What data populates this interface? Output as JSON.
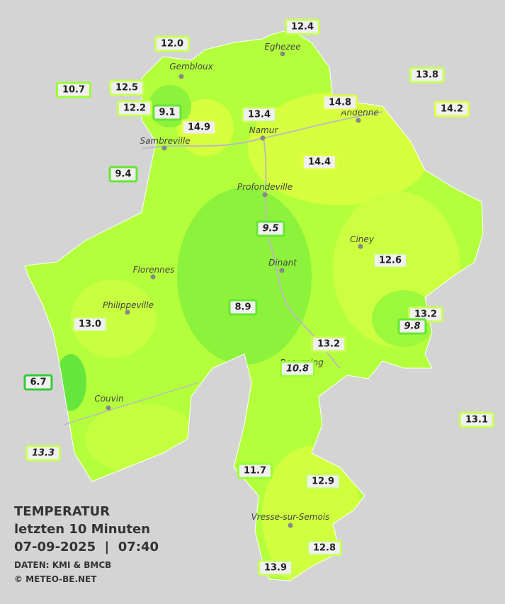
{
  "stations": [
    "12.4",
    "12.0",
    "10.7",
    "12.5",
    "13.8",
    "12.2",
    "9.1",
    "14.8",
    "14.2",
    "13.4",
    "14.9",
    "14.4",
    "9.4",
    "9.5",
    "12.6",
    "8.9",
    "13.2",
    "9.8",
    "13.0",
    "13.2",
    "10.8",
    "6.7",
    "13.1",
    "13.3",
    "11.7",
    "12.9",
    "12.8",
    "13.9"
  ],
  "towns": [
    "Eghezee",
    "Gembloux",
    "Andenne",
    "Namur",
    "Sambreville",
    "Profondeville",
    "Ciney",
    "Dinant",
    "Florennes",
    "Philippeville",
    "Beauraing",
    "Couvin",
    "Vresse-sur-Semois"
  ],
  "caption": {
    "title": "TEMPERATUR",
    "subtitle": "letzten 10 Minuten",
    "datetime": "07-09-2025  |  07:40",
    "source": "DATEN: KMI & BMCB",
    "copyright": "© METEO-BE.NET"
  }
}
